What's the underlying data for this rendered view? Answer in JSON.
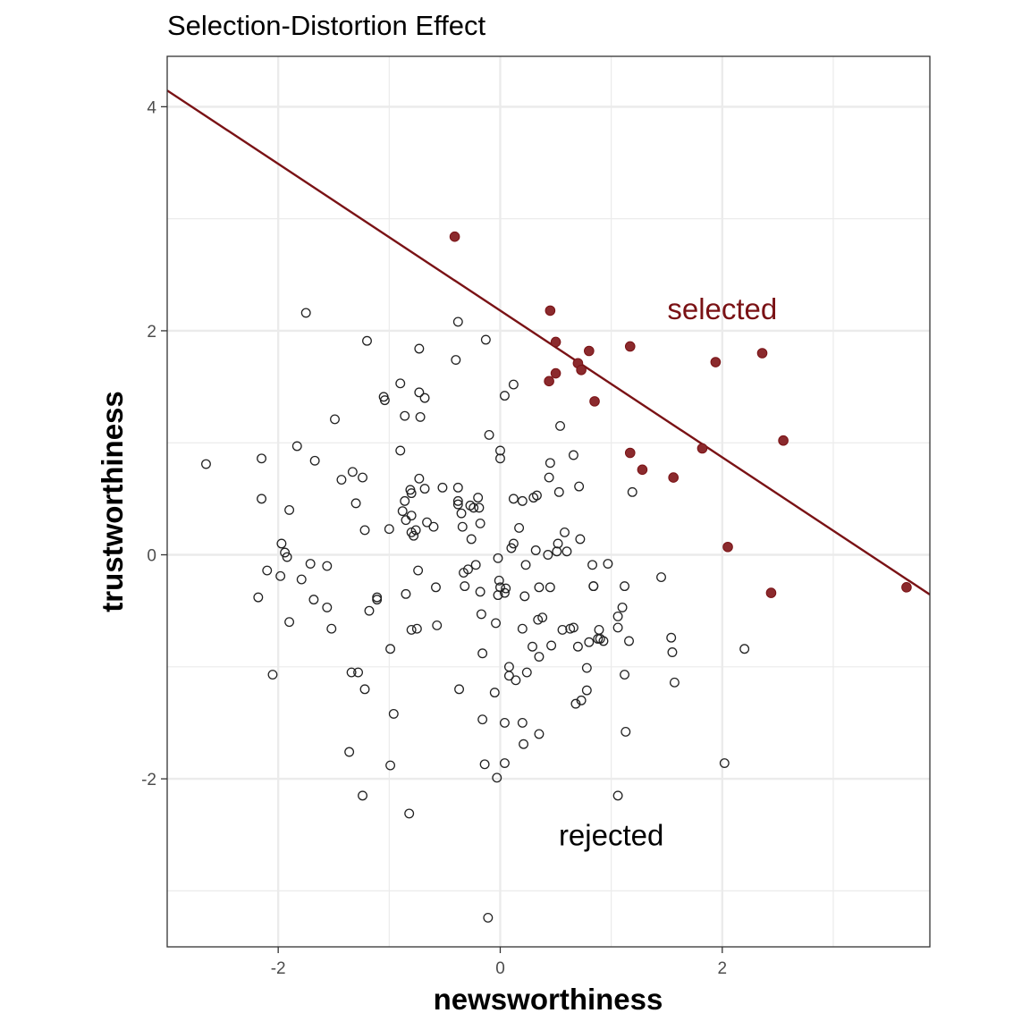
{
  "chart_data": {
    "type": "scatter",
    "title": "Selection-Distortion Effect",
    "xlabel": "newsworthiness",
    "ylabel": "trustworthiness",
    "xlim": [
      -3.0,
      3.87
    ],
    "ylim": [
      -3.5,
      4.45
    ],
    "x_ticks": [
      {
        "value": -2,
        "label": "-2"
      },
      {
        "value": 0,
        "label": "0"
      },
      {
        "value": 2,
        "label": "2"
      }
    ],
    "y_ticks": [
      {
        "value": -2,
        "label": "-2"
      },
      {
        "value": 0,
        "label": "0"
      },
      {
        "value": 2,
        "label": "2"
      },
      {
        "value": 4,
        "label": "4"
      }
    ],
    "grid": true,
    "legend": "none",
    "colors": {
      "selected": "#7a1215",
      "selected_fill": "#8b2a2d",
      "rejected": "#222222",
      "grid": "#ebebeb",
      "tick_label": "#4d4d4d"
    },
    "regression_line": {
      "intercept": 2.18,
      "slope": -0.655
    },
    "annotations": [
      {
        "text": "selected",
        "x": 2.0,
        "y": 2.2,
        "color": "#7a1215"
      },
      {
        "text": "rejected",
        "x": 1.0,
        "y": -2.5,
        "color": "#000000"
      }
    ],
    "series": [
      {
        "name": "selected",
        "points": [
          [
            -0.41,
            2.84
          ],
          [
            0.45,
            2.18
          ],
          [
            0.5,
            1.9
          ],
          [
            0.8,
            1.82
          ],
          [
            1.17,
            1.86
          ],
          [
            0.7,
            1.71
          ],
          [
            0.73,
            1.65
          ],
          [
            0.5,
            1.62
          ],
          [
            0.44,
            1.55
          ],
          [
            0.85,
            1.37
          ],
          [
            1.94,
            1.72
          ],
          [
            2.36,
            1.8
          ],
          [
            1.82,
            0.95
          ],
          [
            2.55,
            1.02
          ],
          [
            1.17,
            0.91
          ],
          [
            1.28,
            0.76
          ],
          [
            1.56,
            0.69
          ],
          [
            2.05,
            0.07
          ],
          [
            2.44,
            -0.34
          ],
          [
            3.66,
            -0.29
          ]
        ]
      },
      {
        "name": "rejected",
        "points": [
          [
            -2.65,
            0.81
          ],
          [
            -2.15,
            0.86
          ],
          [
            -2.15,
            0.5
          ],
          [
            -2.1,
            -0.14
          ],
          [
            -2.18,
            -0.38
          ],
          [
            -2.05,
            -1.07
          ],
          [
            -1.97,
            0.1
          ],
          [
            -1.94,
            0.02
          ],
          [
            -1.92,
            -0.02
          ],
          [
            -1.98,
            -0.19
          ],
          [
            -1.9,
            0.4
          ],
          [
            -1.9,
            -0.6
          ],
          [
            -1.83,
            0.97
          ],
          [
            -1.79,
            -0.22
          ],
          [
            -1.75,
            2.16
          ],
          [
            -1.71,
            -0.08
          ],
          [
            -1.68,
            -0.4
          ],
          [
            -1.67,
            0.84
          ],
          [
            -1.56,
            -0.1
          ],
          [
            -1.56,
            -0.47
          ],
          [
            -1.52,
            -0.66
          ],
          [
            -1.49,
            1.21
          ],
          [
            -1.43,
            0.67
          ],
          [
            -1.33,
            0.74
          ],
          [
            -1.34,
            -1.05
          ],
          [
            -1.28,
            -1.05
          ],
          [
            -1.3,
            0.46
          ],
          [
            -1.24,
            0.69
          ],
          [
            -1.36,
            -1.76
          ],
          [
            -1.22,
            0.22
          ],
          [
            -1.22,
            -1.2
          ],
          [
            -1.2,
            1.91
          ],
          [
            -1.24,
            -2.15
          ],
          [
            -1.18,
            -0.5
          ],
          [
            -1.11,
            -0.4
          ],
          [
            -1.11,
            -0.38
          ],
          [
            -1.05,
            1.41
          ],
          [
            -1.04,
            1.38
          ],
          [
            -1.0,
            0.23
          ],
          [
            -0.99,
            -0.84
          ],
          [
            -0.96,
            -1.42
          ],
          [
            -0.99,
            -1.88
          ],
          [
            -0.9,
            1.53
          ],
          [
            -0.9,
            0.93
          ],
          [
            -0.88,
            0.39
          ],
          [
            -0.86,
            1.24
          ],
          [
            -0.86,
            0.48
          ],
          [
            -0.85,
            0.31
          ],
          [
            -0.85,
            -0.35
          ],
          [
            -0.81,
            0.58
          ],
          [
            -0.8,
            0.55
          ],
          [
            -0.8,
            0.35
          ],
          [
            -0.8,
            0.2
          ],
          [
            -0.8,
            -0.67
          ],
          [
            -0.78,
            0.17
          ],
          [
            -0.76,
            0.22
          ],
          [
            -0.75,
            -0.66
          ],
          [
            -0.74,
            -0.14
          ],
          [
            -0.73,
            1.45
          ],
          [
            -0.72,
            1.23
          ],
          [
            -0.73,
            1.84
          ],
          [
            -0.73,
            0.68
          ],
          [
            -0.68,
            1.4
          ],
          [
            -0.68,
            0.59
          ],
          [
            -0.66,
            0.29
          ],
          [
            -0.82,
            -2.31
          ],
          [
            -0.6,
            0.25
          ],
          [
            -0.58,
            -0.29
          ],
          [
            -0.57,
            -0.63
          ],
          [
            -0.52,
            0.6
          ],
          [
            -0.4,
            1.74
          ],
          [
            -0.38,
            2.08
          ],
          [
            -0.38,
            0.6
          ],
          [
            -0.38,
            0.48
          ],
          [
            -0.38,
            0.45
          ],
          [
            -0.35,
            0.37
          ],
          [
            -0.34,
            0.25
          ],
          [
            -0.33,
            -0.16
          ],
          [
            -0.32,
            -0.28
          ],
          [
            -0.37,
            -1.2
          ],
          [
            -0.29,
            -0.13
          ],
          [
            -0.27,
            0.44
          ],
          [
            -0.24,
            0.42
          ],
          [
            -0.26,
            0.14
          ],
          [
            -0.22,
            -0.09
          ],
          [
            -0.2,
            0.51
          ],
          [
            -0.19,
            0.42
          ],
          [
            -0.18,
            0.28
          ],
          [
            -0.18,
            -0.33
          ],
          [
            -0.17,
            -0.53
          ],
          [
            -0.16,
            -0.88
          ],
          [
            -0.16,
            -1.47
          ],
          [
            -0.13,
            1.92
          ],
          [
            -0.1,
            1.07
          ],
          [
            -0.14,
            -1.87
          ],
          [
            -0.11,
            -3.24
          ],
          [
            -0.04,
            -0.61
          ],
          [
            -0.05,
            -1.23
          ],
          [
            -0.02,
            -0.36
          ],
          [
            -0.03,
            -1.99
          ],
          [
            0.0,
            0.93
          ],
          [
            0.0,
            0.86
          ],
          [
            -0.02,
            -0.03
          ],
          [
            -0.01,
            -0.23
          ],
          [
            0.0,
            -0.29
          ],
          [
            0.04,
            1.42
          ],
          [
            0.04,
            -0.34
          ],
          [
            0.05,
            -0.3
          ],
          [
            0.04,
            -1.5
          ],
          [
            0.04,
            -1.86
          ],
          [
            0.08,
            -1.0
          ],
          [
            0.08,
            -1.08
          ],
          [
            0.12,
            1.52
          ],
          [
            0.12,
            0.5
          ],
          [
            0.1,
            0.06
          ],
          [
            0.12,
            0.1
          ],
          [
            0.14,
            -1.12
          ],
          [
            0.17,
            0.24
          ],
          [
            0.2,
            0.48
          ],
          [
            0.2,
            -0.66
          ],
          [
            0.2,
            -1.5
          ],
          [
            0.21,
            -1.69
          ],
          [
            0.22,
            -0.37
          ],
          [
            0.23,
            -0.09
          ],
          [
            0.24,
            -1.05
          ],
          [
            0.29,
            -0.82
          ],
          [
            0.3,
            0.51
          ],
          [
            0.32,
            0.04
          ],
          [
            0.33,
            0.53
          ],
          [
            0.34,
            -0.58
          ],
          [
            0.35,
            -0.29
          ],
          [
            0.35,
            -0.91
          ],
          [
            0.35,
            -1.6
          ],
          [
            0.38,
            -0.56
          ],
          [
            0.43,
            0.0
          ],
          [
            0.44,
            0.69
          ],
          [
            0.45,
            0.82
          ],
          [
            0.45,
            -0.29
          ],
          [
            0.46,
            -0.81
          ],
          [
            0.51,
            0.03
          ],
          [
            0.52,
            0.1
          ],
          [
            0.53,
            0.56
          ],
          [
            0.54,
            1.15
          ],
          [
            0.56,
            -0.67
          ],
          [
            0.58,
            0.2
          ],
          [
            0.6,
            0.03
          ],
          [
            0.63,
            -0.66
          ],
          [
            0.66,
            0.89
          ],
          [
            0.66,
            -0.65
          ],
          [
            0.68,
            -1.33
          ],
          [
            0.7,
            -0.82
          ],
          [
            0.71,
            0.61
          ],
          [
            0.72,
            0.14
          ],
          [
            0.73,
            -1.3
          ],
          [
            0.78,
            -1.01
          ],
          [
            0.78,
            -1.21
          ],
          [
            0.8,
            -0.78
          ],
          [
            0.83,
            -0.09
          ],
          [
            0.84,
            -0.28
          ],
          [
            0.84,
            -0.28
          ],
          [
            0.88,
            -0.75
          ],
          [
            0.89,
            -0.67
          ],
          [
            0.9,
            -0.75
          ],
          [
            0.93,
            -0.77
          ],
          [
            0.97,
            -0.08
          ],
          [
            1.06,
            -0.55
          ],
          [
            1.06,
            -0.65
          ],
          [
            1.06,
            -2.15
          ],
          [
            1.1,
            -0.47
          ],
          [
            1.12,
            -0.28
          ],
          [
            1.12,
            -1.07
          ],
          [
            1.13,
            -1.58
          ],
          [
            1.16,
            -0.77
          ],
          [
            1.19,
            0.56
          ],
          [
            1.45,
            -0.2
          ],
          [
            1.54,
            -0.74
          ],
          [
            1.55,
            -0.87
          ],
          [
            1.57,
            -1.14
          ],
          [
            2.02,
            -1.86
          ],
          [
            2.2,
            -0.84
          ]
        ]
      }
    ]
  }
}
